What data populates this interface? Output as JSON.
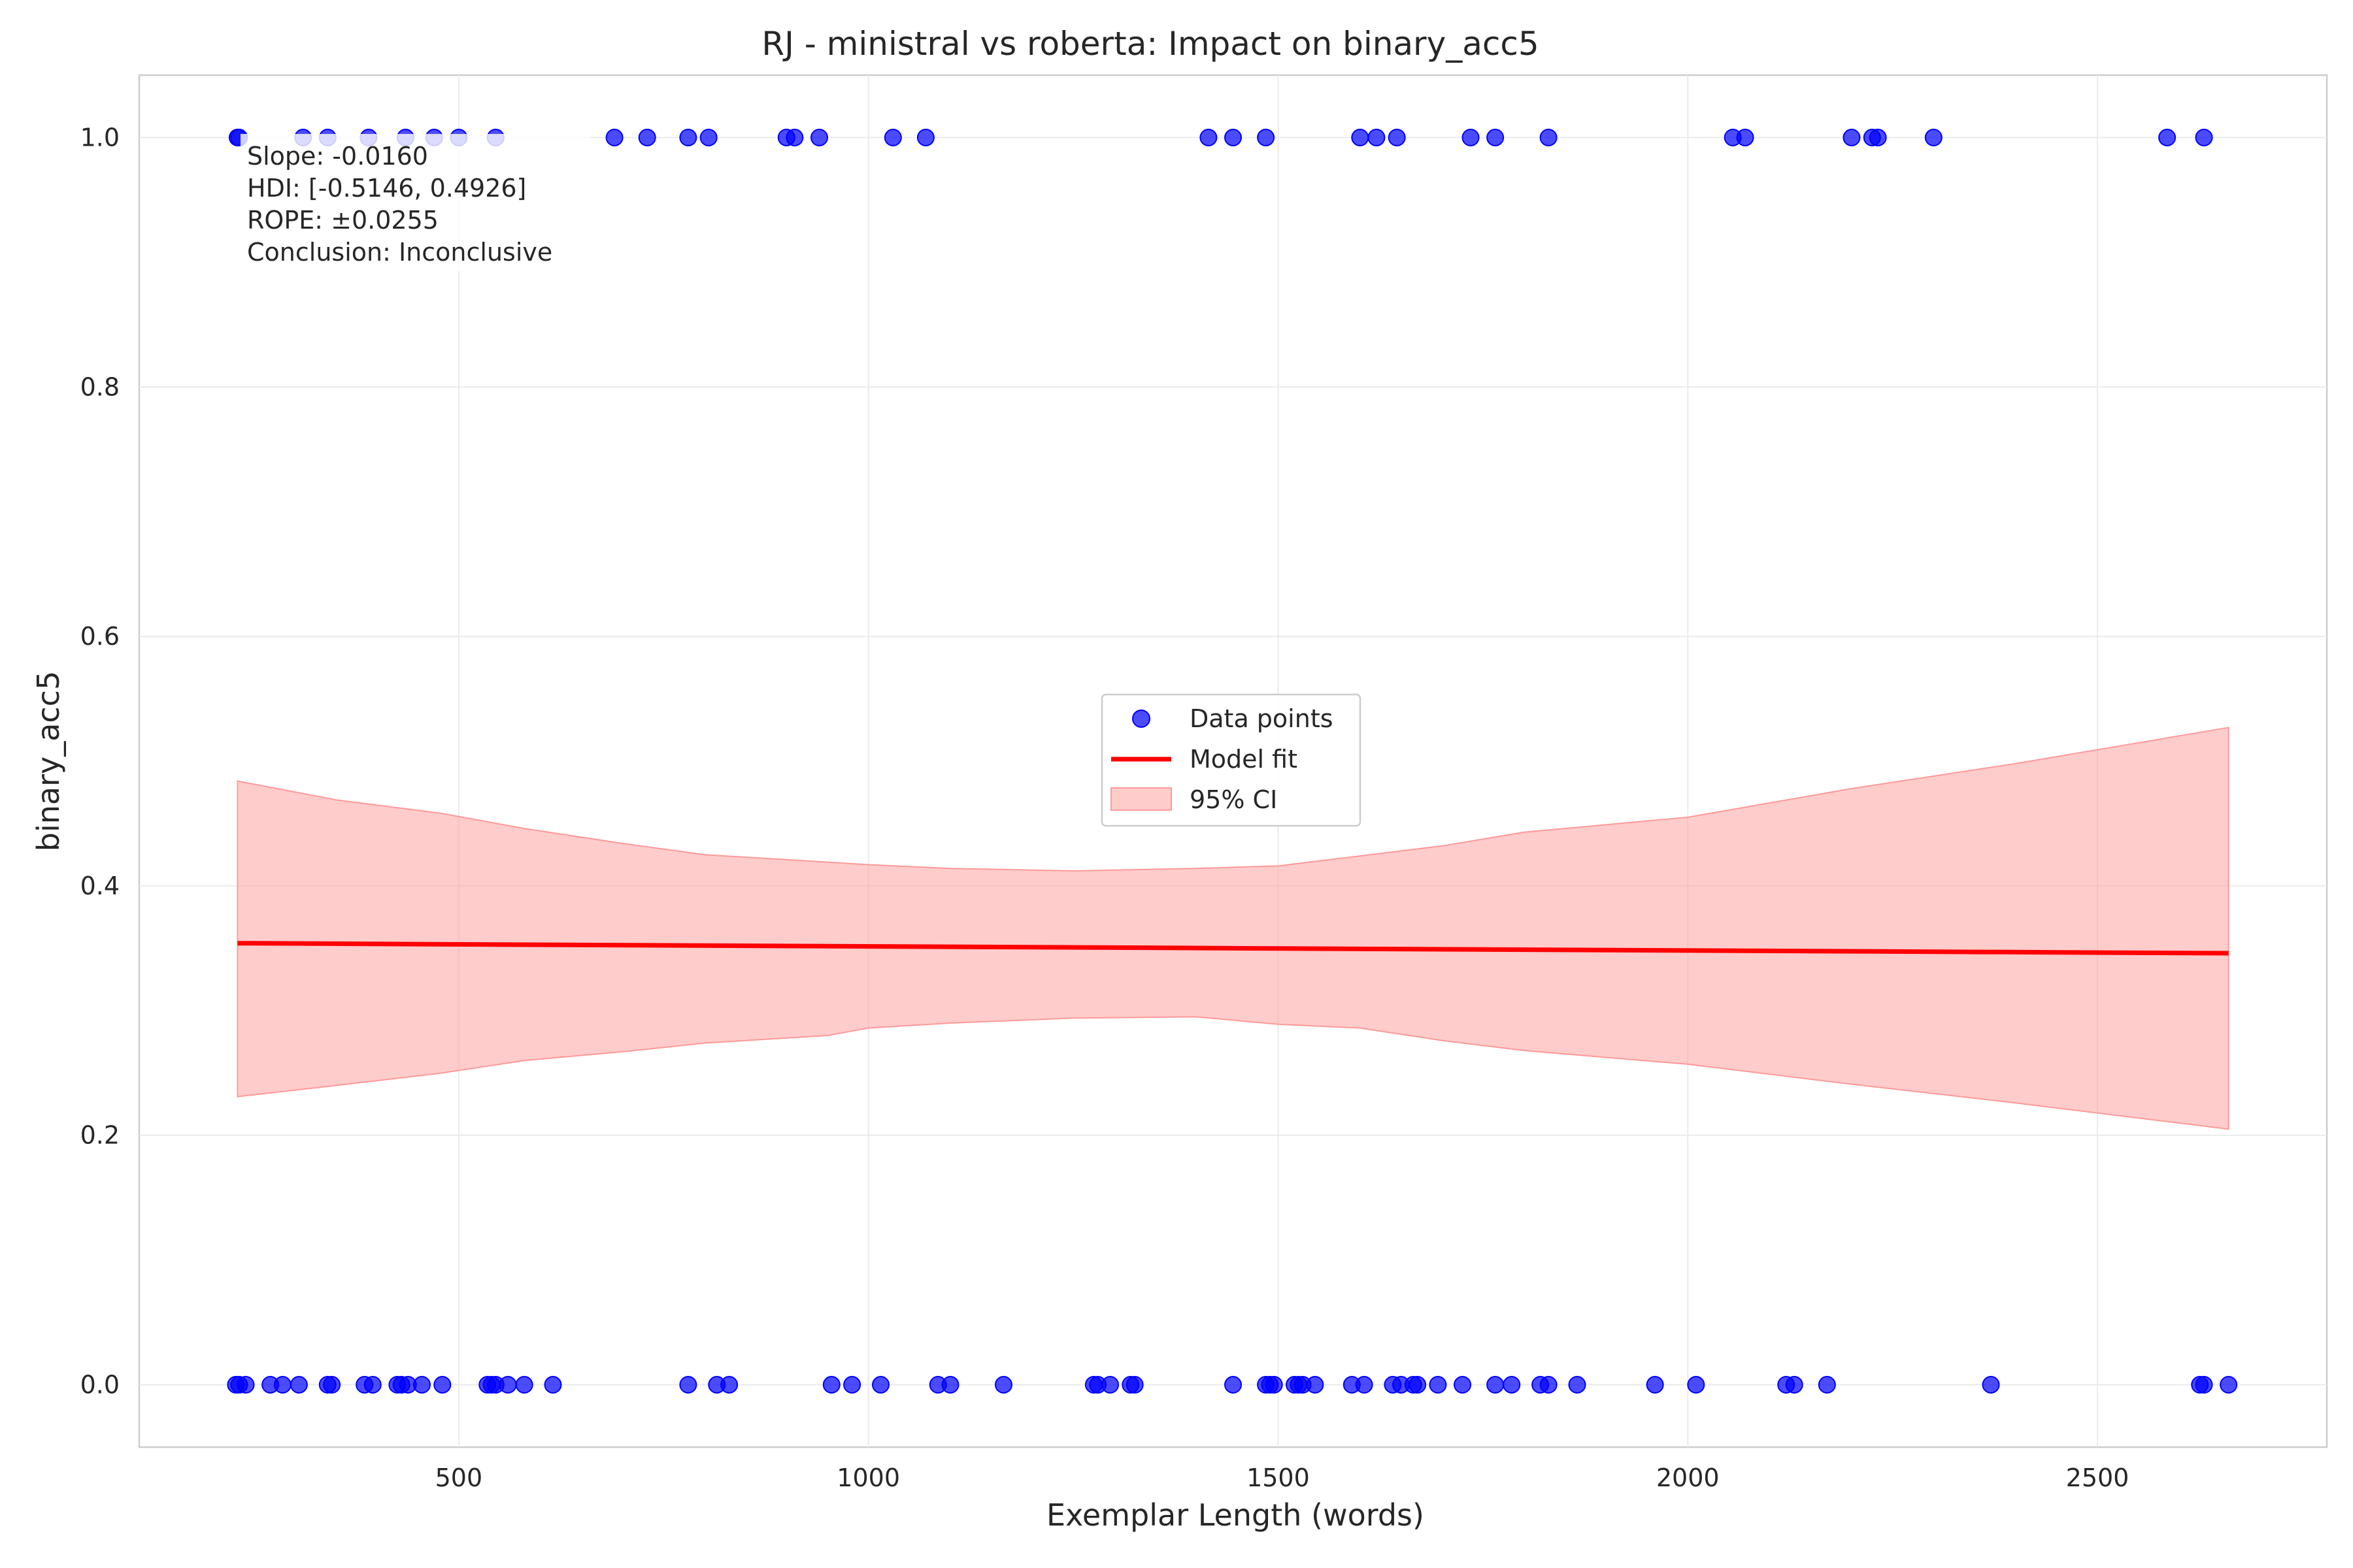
{
  "chart_data": {
    "type": "scatter",
    "title": "RJ - ministral vs roberta: Impact on binary_acc5",
    "xlabel": "Exemplar Length (words)",
    "ylabel": "binary_acc5",
    "xlim": [
      110,
      2780
    ],
    "ylim": [
      -0.05,
      1.05
    ],
    "xticks": [
      500,
      1000,
      1500,
      2000,
      2500
    ],
    "yticks": [
      0.0,
      0.2,
      0.4,
      0.6,
      0.8,
      1.0
    ],
    "ytick_labels": [
      "0.0",
      "0.2",
      "0.4",
      "0.6",
      "0.8",
      "1.0"
    ],
    "grid": true,
    "legend_position": "center",
    "legend": {
      "data_points": "Data points",
      "model_fit": "Model fit",
      "ci": "95% CI"
    },
    "annotation": {
      "slope": "Slope: -0.0160",
      "hdi": "HDI: [-0.5146, 0.4926]",
      "rope": "ROPE: ±0.0255",
      "conclusion": "Conclusion: Inconclusive"
    },
    "colors": {
      "points": "#0000ff",
      "fit": "#ff0000",
      "ci": "#ff9999"
    },
    "series": [
      {
        "name": "Data points",
        "kind": "scatter",
        "x": [
          230,
          232,
          310,
          340,
          390,
          435,
          470,
          500,
          545,
          690,
          730,
          780,
          805,
          900,
          910,
          940,
          1030,
          1070,
          1415,
          1445,
          1485,
          1600,
          1620,
          1645,
          1735,
          1765,
          1830,
          2055,
          2070,
          2200,
          2225,
          2232,
          2300,
          2585,
          2630,
          228,
          232,
          240,
          270,
          285,
          305,
          340,
          345,
          385,
          395,
          425,
          430,
          438,
          455,
          480,
          535,
          540,
          545,
          560,
          580,
          615,
          780,
          815,
          830,
          955,
          980,
          1015,
          1085,
          1100,
          1165,
          1275,
          1280,
          1295,
          1320,
          1325,
          1445,
          1485,
          1490,
          1495,
          1520,
          1525,
          1530,
          1545,
          1590,
          1605,
          1640,
          1650,
          1665,
          1670,
          1695,
          1725,
          1765,
          1785,
          1820,
          1830,
          1865,
          1960,
          2010,
          2120,
          2130,
          2170,
          2370,
          2625,
          2630,
          2660
        ],
        "y": [
          1,
          1,
          1,
          1,
          1,
          1,
          1,
          1,
          1,
          1,
          1,
          1,
          1,
          1,
          1,
          1,
          1,
          1,
          1,
          1,
          1,
          1,
          1,
          1,
          1,
          1,
          1,
          1,
          1,
          1,
          1,
          1,
          1,
          1,
          1,
          0,
          0,
          0,
          0,
          0,
          0,
          0,
          0,
          0,
          0,
          0,
          0,
          0,
          0,
          0,
          0,
          0,
          0,
          0,
          0,
          0,
          0,
          0,
          0,
          0,
          0,
          0,
          0,
          0,
          0,
          0,
          0,
          0,
          0,
          0,
          0,
          0,
          0,
          0,
          0,
          0,
          0,
          0,
          0,
          0,
          0,
          0,
          0,
          0,
          0,
          0,
          0,
          0,
          0,
          0,
          0,
          0,
          0,
          0,
          0,
          0,
          0,
          0,
          0,
          0
        ]
      },
      {
        "name": "Model fit",
        "kind": "line",
        "x": [
          230,
          2660
        ],
        "y": [
          0.354,
          0.346
        ]
      },
      {
        "name": "95% CI",
        "kind": "band",
        "x": [
          230,
          350,
          480,
          580,
          700,
          800,
          950,
          1000,
          1100,
          1250,
          1400,
          1500,
          1600,
          1700,
          1800,
          2000,
          2200,
          2400,
          2660
        ],
        "lower": [
          0.231,
          0.24,
          0.25,
          0.26,
          0.267,
          0.274,
          0.28,
          0.286,
          0.29,
          0.294,
          0.295,
          0.289,
          0.286,
          0.276,
          0.268,
          0.257,
          0.241,
          0.226,
          0.205
        ],
        "upper": [
          0.484,
          0.469,
          0.458,
          0.446,
          0.434,
          0.425,
          0.419,
          0.417,
          0.414,
          0.412,
          0.414,
          0.416,
          0.424,
          0.432,
          0.443,
          0.455,
          0.478,
          0.498,
          0.527
        ]
      }
    ]
  }
}
